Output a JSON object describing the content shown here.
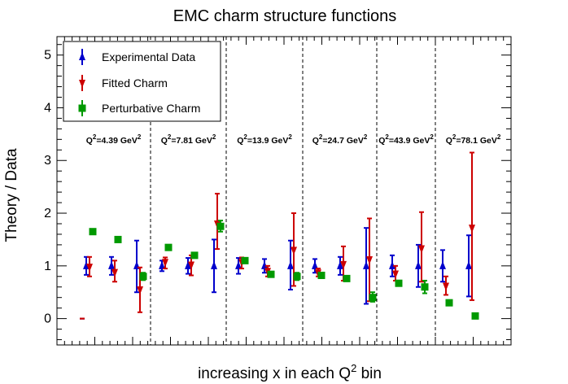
{
  "chart_data": {
    "type": "scatter",
    "title": "EMC charm structure functions",
    "xlabel_base": "increasing x in each Q",
    "xlabel_sup": "2",
    "xlabel_tail": " bin",
    "ylabel": "Theory / Data",
    "ylim": [
      -0.5,
      5.35
    ],
    "yticks": [
      0,
      1,
      2,
      3,
      4,
      5
    ],
    "ytick_labels": [
      "0",
      "1",
      "2",
      "3",
      "4",
      "5"
    ],
    "grid": false,
    "legend_position": "top-left",
    "bins": [
      {
        "q2": "4.39",
        "label_sup": "2",
        "label_unit": "GeV",
        "points": 3
      },
      {
        "q2": "7.81",
        "label_sup": "2",
        "label_unit": "GeV",
        "points": 3
      },
      {
        "q2": "13.9",
        "label_sup": "2",
        "label_unit": "GeV",
        "points": 3
      },
      {
        "q2": "24.7",
        "label_sup": "2",
        "label_unit": "GeV",
        "points": 3
      },
      {
        "q2": "43.9",
        "label_sup": "2",
        "label_unit": "GeV",
        "points": 2
      },
      {
        "q2": "78.1",
        "label_sup": "2",
        "label_unit": "GeV",
        "points": 2
      }
    ],
    "series": [
      {
        "name": "Experimental Data",
        "color": "#0000cc",
        "marker": "triangle-up",
        "points": [
          {
            "bin": 0,
            "idx": 0,
            "y": 1.0,
            "lo": 0.83,
            "hi": 1.17
          },
          {
            "bin": 0,
            "idx": 1,
            "y": 1.0,
            "lo": 0.83,
            "hi": 1.17
          },
          {
            "bin": 0,
            "idx": 2,
            "y": 1.0,
            "lo": 0.5,
            "hi": 1.48
          },
          {
            "bin": 1,
            "idx": 0,
            "y": 1.0,
            "lo": 0.9,
            "hi": 1.1
          },
          {
            "bin": 1,
            "idx": 1,
            "y": 1.0,
            "lo": 0.85,
            "hi": 1.15
          },
          {
            "bin": 1,
            "idx": 2,
            "y": 1.0,
            "lo": 0.5,
            "hi": 1.5
          },
          {
            "bin": 2,
            "idx": 0,
            "y": 1.0,
            "lo": 0.85,
            "hi": 1.15
          },
          {
            "bin": 2,
            "idx": 1,
            "y": 1.0,
            "lo": 0.87,
            "hi": 1.13
          },
          {
            "bin": 2,
            "idx": 2,
            "y": 1.0,
            "lo": 0.55,
            "hi": 1.48
          },
          {
            "bin": 3,
            "idx": 0,
            "y": 1.0,
            "lo": 0.87,
            "hi": 1.13
          },
          {
            "bin": 3,
            "idx": 1,
            "y": 1.0,
            "lo": 0.83,
            "hi": 1.17
          },
          {
            "bin": 3,
            "idx": 2,
            "y": 1.0,
            "lo": 0.28,
            "hi": 1.72
          },
          {
            "bin": 4,
            "idx": 0,
            "y": 1.0,
            "lo": 0.8,
            "hi": 1.2
          },
          {
            "bin": 4,
            "idx": 1,
            "y": 1.0,
            "lo": 0.6,
            "hi": 1.4
          },
          {
            "bin": 5,
            "idx": 0,
            "y": 1.0,
            "lo": 0.7,
            "hi": 1.3
          },
          {
            "bin": 5,
            "idx": 1,
            "y": 1.0,
            "lo": 0.42,
            "hi": 1.58
          }
        ]
      },
      {
        "name": "Fitted Charm",
        "color": "#cc0000",
        "marker": "triangle-down",
        "points": [
          {
            "bin": 0,
            "idx": 0,
            "y": 0.98,
            "lo": 0.8,
            "hi": 1.17
          },
          {
            "bin": 0,
            "idx": 1,
            "y": 0.88,
            "lo": 0.7,
            "hi": 1.1
          },
          {
            "bin": 0,
            "idx": 2,
            "y": 0.55,
            "lo": 0.12,
            "hi": 0.97
          },
          {
            "bin": 1,
            "idx": 0,
            "y": 1.07,
            "lo": 0.95,
            "hi": 1.16
          },
          {
            "bin": 1,
            "idx": 1,
            "y": 1.02,
            "lo": 0.82,
            "hi": 1.2
          },
          {
            "bin": 1,
            "idx": 2,
            "y": 1.8,
            "lo": 1.32,
            "hi": 2.37
          },
          {
            "bin": 2,
            "idx": 0,
            "y": 1.07,
            "lo": 0.95,
            "hi": 1.16
          },
          {
            "bin": 2,
            "idx": 1,
            "y": 0.9,
            "lo": 0.8,
            "hi": 1.0
          },
          {
            "bin": 2,
            "idx": 2,
            "y": 1.3,
            "lo": 0.62,
            "hi": 2.0
          },
          {
            "bin": 3,
            "idx": 0,
            "y": 0.87,
            "lo": 0.8,
            "hi": 0.95
          },
          {
            "bin": 3,
            "idx": 1,
            "y": 1.03,
            "lo": 0.72,
            "hi": 1.37
          },
          {
            "bin": 3,
            "idx": 2,
            "y": 1.12,
            "lo": 0.33,
            "hi": 1.9
          },
          {
            "bin": 4,
            "idx": 0,
            "y": 0.85,
            "lo": 0.72,
            "hi": 1.0
          },
          {
            "bin": 4,
            "idx": 1,
            "y": 1.33,
            "lo": 0.7,
            "hi": 2.02
          },
          {
            "bin": 5,
            "idx": 0,
            "y": 0.62,
            "lo": 0.45,
            "hi": 0.8
          },
          {
            "bin": 5,
            "idx": 1,
            "y": 1.72,
            "lo": 0.35,
            "hi": 3.15
          }
        ]
      },
      {
        "name": "Perturbative Charm",
        "color": "#009900",
        "marker": "square",
        "points": [
          {
            "bin": 0,
            "idx": 0,
            "y": 1.65
          },
          {
            "bin": 0,
            "idx": 1,
            "y": 1.5
          },
          {
            "bin": 0,
            "idx": 2,
            "y": 0.8,
            "lo": 0.73,
            "hi": 0.87
          },
          {
            "bin": 1,
            "idx": 0,
            "y": 1.35
          },
          {
            "bin": 1,
            "idx": 1,
            "y": 1.2
          },
          {
            "bin": 1,
            "idx": 2,
            "y": 1.75,
            "lo": 1.65,
            "hi": 1.86
          },
          {
            "bin": 2,
            "idx": 0,
            "y": 1.1
          },
          {
            "bin": 2,
            "idx": 1,
            "y": 0.84
          },
          {
            "bin": 2,
            "idx": 2,
            "y": 0.8,
            "lo": 0.73,
            "hi": 0.87
          },
          {
            "bin": 3,
            "idx": 0,
            "y": 0.82
          },
          {
            "bin": 3,
            "idx": 1,
            "y": 0.76
          },
          {
            "bin": 3,
            "idx": 2,
            "y": 0.4,
            "lo": 0.32,
            "hi": 0.5
          },
          {
            "bin": 4,
            "idx": 0,
            "y": 0.67
          },
          {
            "bin": 4,
            "idx": 1,
            "y": 0.6,
            "lo": 0.48,
            "hi": 0.72
          },
          {
            "bin": 5,
            "idx": 0,
            "y": 0.3
          },
          {
            "bin": 5,
            "idx": 1,
            "y": 0.05
          }
        ]
      }
    ]
  }
}
